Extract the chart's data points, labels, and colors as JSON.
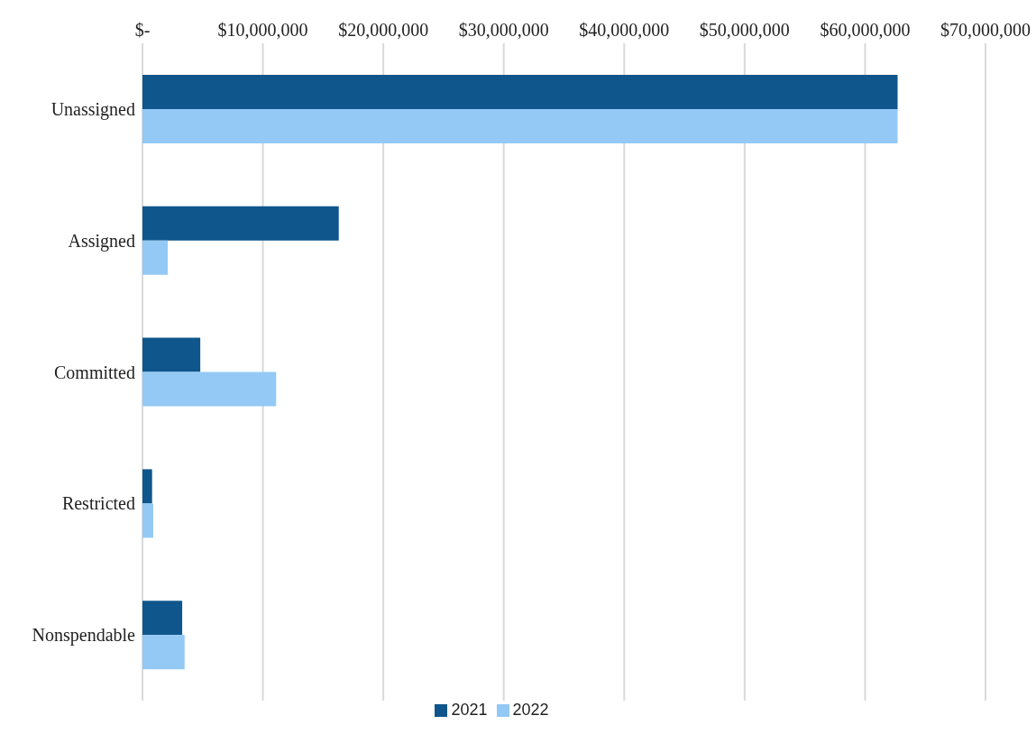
{
  "chart_data": {
    "type": "bar",
    "orientation": "horizontal",
    "categories": [
      "Unassigned",
      "Assigned",
      "Committed",
      "Restricted",
      "Nonspendable"
    ],
    "series": [
      {
        "name": "2021",
        "color": "#0f568c",
        "values": [
          62700000,
          16300000,
          4800000,
          800000,
          3300000
        ]
      },
      {
        "name": "2022",
        "color": "#93c9f4",
        "values": [
          62700000,
          2100000,
          11100000,
          900000,
          3500000
        ]
      }
    ],
    "xlim": [
      0,
      70000000
    ],
    "xticks": [
      {
        "value": 0,
        "label": "$-"
      },
      {
        "value": 10000000,
        "label": "$10,000,000"
      },
      {
        "value": 20000000,
        "label": "$20,000,000"
      },
      {
        "value": 30000000,
        "label": "$30,000,000"
      },
      {
        "value": 40000000,
        "label": "$40,000,000"
      },
      {
        "value": 50000000,
        "label": "$50,000,000"
      },
      {
        "value": 60000000,
        "label": "$60,000,000"
      },
      {
        "value": 70000000,
        "label": "$70,000,000"
      }
    ],
    "grid": "x",
    "legend": "bottom"
  }
}
